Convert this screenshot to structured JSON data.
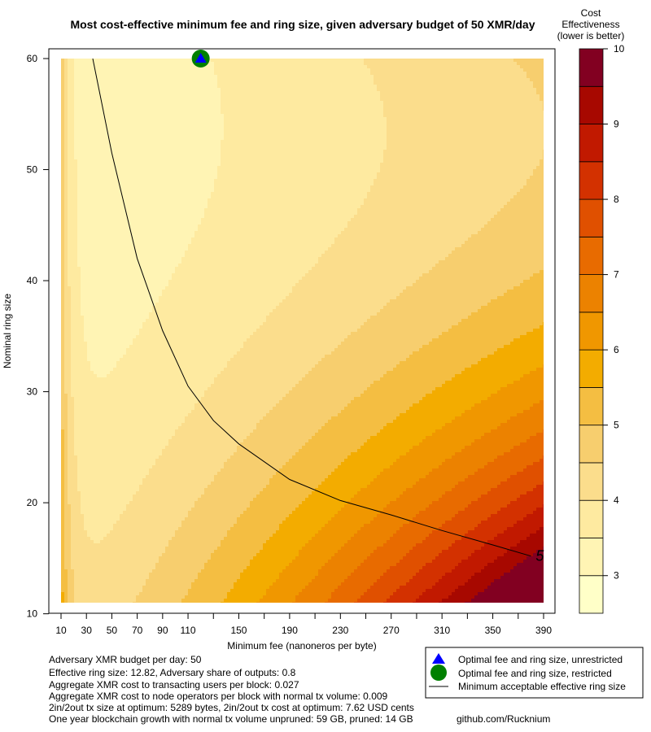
{
  "chart_data": {
    "type": "heatmap",
    "title": "Most cost-effective minimum fee and ring size, given adversary budget of 50 XMR/day",
    "xlabel": "Minimum fee (nanoneros per byte)",
    "ylabel": "Nominal ring size",
    "x_axis": {
      "range": [
        10,
        390
      ],
      "ticks": [
        10,
        30,
        50,
        70,
        90,
        110,
        130,
        150,
        170,
        190,
        210,
        230,
        250,
        270,
        290,
        310,
        330,
        350,
        370,
        390
      ],
      "tick_labels": [
        "10",
        "30",
        "50",
        "70",
        "90",
        "110",
        "",
        "150",
        "",
        "190",
        "",
        "230",
        "",
        "270",
        "",
        "310",
        "",
        "350",
        "",
        "390"
      ]
    },
    "y_axis": {
      "range": [
        11,
        60
      ],
      "ticks": [
        10,
        20,
        30,
        40,
        50,
        60
      ],
      "tick_labels": [
        "10",
        "20",
        "30",
        "40",
        "50",
        "60"
      ]
    },
    "levels": [
      2.5,
      3,
      3.5,
      4,
      4.5,
      5,
      5.5,
      6,
      6.5,
      7,
      7.5,
      8,
      8.5,
      9,
      9.5,
      10
    ],
    "colors": [
      "#FFFFC8",
      "#FFF4B4",
      "#FEEAA0",
      "#FBDD8C",
      "#F7CE6E",
      "#F4BE42",
      "#F3AC00",
      "#F09700",
      "#EC8200",
      "#E86B00",
      "#E05000",
      "#D33100",
      "#C11900",
      "#A70800",
      "#820021"
    ],
    "colorbar": {
      "title": [
        "Cost",
        "Effectiveness",
        "(lower is better)"
      ],
      "ticks": [
        3,
        4,
        5,
        6,
        7,
        8,
        9,
        10
      ],
      "tick_labels": [
        "3",
        "4",
        "5",
        "6",
        "7",
        "8",
        "9",
        "10"
      ]
    },
    "contour_line": {
      "label": "5",
      "x": [
        35,
        50,
        70,
        90,
        110,
        130,
        150,
        190,
        230,
        270,
        310,
        350,
        380
      ],
      "y": [
        60,
        51.5,
        42,
        35.5,
        30.5,
        27.4,
        25.3,
        22.1,
        20.2,
        18.9,
        17.5,
        16.2,
        15.2
      ]
    },
    "markers": [
      {
        "label": "Optimal fee and ring size, unrestricted",
        "x": 120,
        "y": 60,
        "symbol": "triangle",
        "color": "#0000FF"
      },
      {
        "label": "Optimal fee and ring size, restricted",
        "x": 120,
        "y": 60,
        "symbol": "circle",
        "color": "#008000"
      }
    ],
    "legend": {
      "position": "bottom-right",
      "entries": [
        "Optimal fee and ring size, unrestricted",
        "Optimal fee and ring size, restricted",
        "Minimum acceptable effective ring size"
      ]
    }
  },
  "annotations": {
    "lines": [
      "Adversary XMR budget per day: 50",
      "Effective ring size: 12.82, Adversary share of outputs: 0.8",
      "Aggregate XMR cost to transacting users per block: 0.027",
      "Aggregate XMR cost to node operators per block with normal tx volume: 0.009",
      "2in/2out tx size at optimum: 5289 bytes, 2in/2out tx cost at optimum: 7.62 USD cents",
      "One year blockchain growth with normal tx volume unpruned: 59 GB, pruned: 14 GB"
    ],
    "credit": "github.com/Rucknium"
  }
}
